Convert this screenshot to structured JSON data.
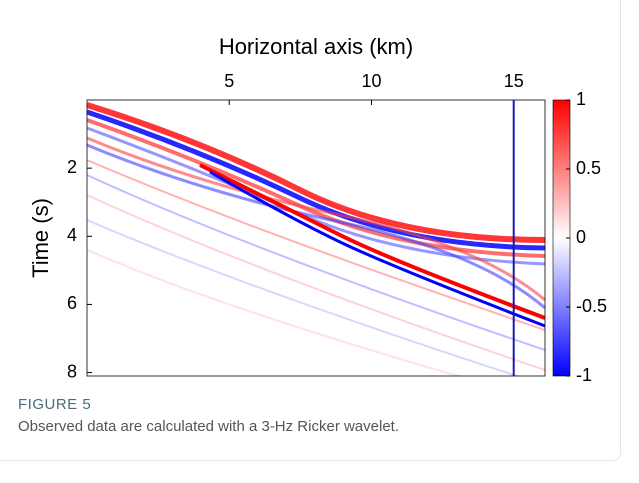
{
  "chart_data": {
    "type": "heatmap",
    "xlabel": "Horizontal axis (km)",
    "ylabel": "Time (s)",
    "xlim": [
      0,
      16.1
    ],
    "xticks": [
      5,
      10,
      15
    ],
    "ylim": [
      0,
      8.1
    ],
    "yticks": [
      2,
      4,
      6,
      8
    ],
    "y_reversed": true,
    "clim": [
      -1,
      1
    ],
    "cticks": [
      1,
      0.5,
      0,
      -0.5,
      -1
    ],
    "colormap": [
      "#0000ff",
      "#ffffff",
      "#ff0000"
    ],
    "marker_x": 15,
    "marker_color": "#1a1aa8"
  },
  "caption": {
    "label": "FIGURE 5",
    "text": "Observed data are calculated with a 3-Hz Ricker wavelet."
  }
}
